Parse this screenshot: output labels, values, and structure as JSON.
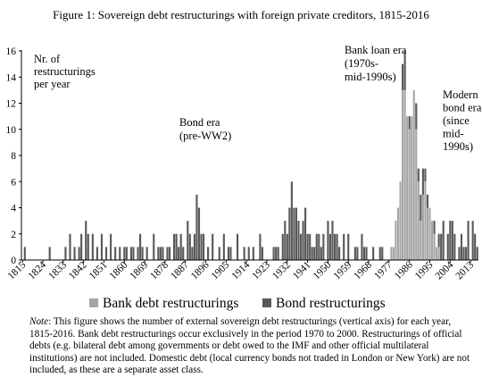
{
  "figure": {
    "title": "Figure 1: Sovereign debt restructurings with foreign private creditors, 1815-2016",
    "note_label": "Note",
    "note_text": ": This figure shows the number of external sovereign debt restructurings (vertical axis) for each year, 1815-2016. Bank debt restructurings occur exclusively in the period 1970 to 2000. Restructurings of official debts (e.g. bilateral debt among governments or debt owed to the IMF and other official multilateral institutions) are not included. Domestic debt (local currency bonds not traded in London or New York) are not included, as these are a separate asset class."
  },
  "chart_data": {
    "type": "bar",
    "title": "Figure 1: Sovereign debt restructurings with foreign private creditors, 1815-2016",
    "ylabel": "Nr. of restructurings per year",
    "xlabel": "",
    "ylim": [
      0,
      16
    ],
    "yticks": [
      0,
      2,
      4,
      6,
      8,
      10,
      12,
      14,
      16
    ],
    "xrange": [
      1815,
      2016
    ],
    "xticks": [
      1815,
      1824,
      1833,
      1842,
      1851,
      1860,
      1869,
      1878,
      1887,
      1896,
      1905,
      1914,
      1923,
      1932,
      1941,
      1950,
      1959,
      1968,
      1977,
      1986,
      1995,
      2004,
      2013
    ],
    "stacked": true,
    "legend_position": "bottom",
    "grid": false,
    "series": [
      {
        "name": "Bank debt restructurings",
        "color": "#a6a6a6",
        "values": [
          [
            1978,
            1
          ],
          [
            1979,
            1
          ],
          [
            1980,
            3
          ],
          [
            1981,
            4
          ],
          [
            1982,
            6
          ],
          [
            1983,
            13
          ],
          [
            1984,
            13
          ],
          [
            1985,
            11
          ],
          [
            1986,
            10
          ],
          [
            1987,
            11
          ],
          [
            1988,
            13
          ],
          [
            1989,
            10
          ],
          [
            1990,
            6
          ],
          [
            1991,
            3
          ],
          [
            1992,
            5
          ],
          [
            1993,
            6
          ],
          [
            1994,
            4
          ],
          [
            1995,
            4
          ],
          [
            1996,
            3
          ],
          [
            1997,
            2
          ],
          [
            1998,
            1
          ],
          [
            1999,
            1
          ]
        ]
      },
      {
        "name": "Bond restructurings",
        "color": "#595959",
        "values": [
          [
            1816,
            1
          ],
          [
            1827,
            1
          ],
          [
            1834,
            1
          ],
          [
            1836,
            2
          ],
          [
            1838,
            1
          ],
          [
            1840,
            1
          ],
          [
            1841,
            2
          ],
          [
            1843,
            3
          ],
          [
            1844,
            2
          ],
          [
            1846,
            2
          ],
          [
            1848,
            1
          ],
          [
            1850,
            2
          ],
          [
            1852,
            1
          ],
          [
            1854,
            2
          ],
          [
            1856,
            1
          ],
          [
            1858,
            1
          ],
          [
            1860,
            1
          ],
          [
            1861,
            1
          ],
          [
            1863,
            1
          ],
          [
            1864,
            1
          ],
          [
            1866,
            1
          ],
          [
            1867,
            2
          ],
          [
            1868,
            1
          ],
          [
            1870,
            1
          ],
          [
            1873,
            2
          ],
          [
            1875,
            1
          ],
          [
            1876,
            1
          ],
          [
            1877,
            1
          ],
          [
            1879,
            1
          ],
          [
            1880,
            1
          ],
          [
            1882,
            2
          ],
          [
            1883,
            2
          ],
          [
            1884,
            1
          ],
          [
            1885,
            2
          ],
          [
            1886,
            1
          ],
          [
            1888,
            3
          ],
          [
            1889,
            2
          ],
          [
            1890,
            1
          ],
          [
            1891,
            2
          ],
          [
            1892,
            5
          ],
          [
            1893,
            4
          ],
          [
            1894,
            2
          ],
          [
            1895,
            2
          ],
          [
            1897,
            1
          ],
          [
            1899,
            2
          ],
          [
            1902,
            1
          ],
          [
            1904,
            2
          ],
          [
            1906,
            1
          ],
          [
            1907,
            1
          ],
          [
            1910,
            2
          ],
          [
            1913,
            1
          ],
          [
            1915,
            1
          ],
          [
            1917,
            1
          ],
          [
            1920,
            2
          ],
          [
            1921,
            1
          ],
          [
            1926,
            1
          ],
          [
            1927,
            1
          ],
          [
            1928,
            1
          ],
          [
            1930,
            2
          ],
          [
            1931,
            3
          ],
          [
            1932,
            2
          ],
          [
            1933,
            4
          ],
          [
            1934,
            6
          ],
          [
            1935,
            4
          ],
          [
            1936,
            4
          ],
          [
            1937,
            3
          ],
          [
            1938,
            2
          ],
          [
            1939,
            3
          ],
          [
            1940,
            4
          ],
          [
            1941,
            2
          ],
          [
            1942,
            2
          ],
          [
            1943,
            1
          ],
          [
            1944,
            1
          ],
          [
            1945,
            2
          ],
          [
            1946,
            2
          ],
          [
            1947,
            1
          ],
          [
            1948,
            2
          ],
          [
            1950,
            3
          ],
          [
            1951,
            2
          ],
          [
            1952,
            3
          ],
          [
            1953,
            2
          ],
          [
            1954,
            2
          ],
          [
            1955,
            1
          ],
          [
            1957,
            2
          ],
          [
            1959,
            2
          ],
          [
            1962,
            1
          ],
          [
            1963,
            1
          ],
          [
            1965,
            2
          ],
          [
            1966,
            1
          ],
          [
            1967,
            1
          ],
          [
            1970,
            1
          ],
          [
            1973,
            1
          ],
          [
            1974,
            1
          ],
          [
            1983,
            2
          ],
          [
            1984,
            3
          ],
          [
            1986,
            1
          ],
          [
            1989,
            2
          ],
          [
            1990,
            1
          ],
          [
            1991,
            2
          ],
          [
            1992,
            2
          ],
          [
            1993,
            1
          ],
          [
            1994,
            1
          ],
          [
            1997,
            1
          ],
          [
            1999,
            1
          ],
          [
            2000,
            2
          ],
          [
            2001,
            3
          ],
          [
            2003,
            2
          ],
          [
            2004,
            3
          ],
          [
            2005,
            3
          ],
          [
            2006,
            2
          ],
          [
            2008,
            1
          ],
          [
            2009,
            2
          ],
          [
            2010,
            1
          ],
          [
            2011,
            1
          ],
          [
            2012,
            3
          ],
          [
            2014,
            3
          ],
          [
            2015,
            2
          ],
          [
            2016,
            1
          ]
        ]
      }
    ],
    "annotations": [
      {
        "id": "bond-era",
        "lines": [
          "Bond era",
          "(pre-WW2)"
        ]
      },
      {
        "id": "bank-loan-era",
        "lines": [
          "Bank loan era",
          "(1970s-",
          "mid-1990s)"
        ]
      },
      {
        "id": "modern-bond-era",
        "lines": [
          "Modern",
          "bond era",
          "(since",
          "mid-",
          "1990s)"
        ]
      }
    ]
  }
}
